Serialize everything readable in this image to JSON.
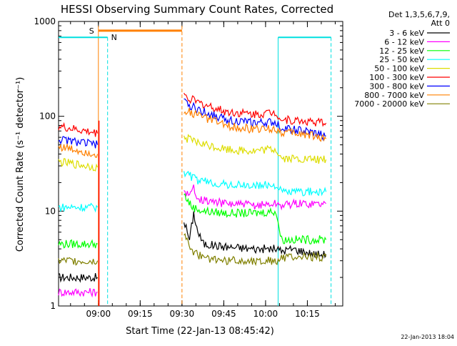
{
  "chart_data": {
    "type": "line",
    "title": "HESSI Observing Summary Count Rates, Corrected",
    "xlabel": "Start Time (22-Jan-13 08:45:42)",
    "ylabel": "Corrected Count Rate (s⁻¹ detector⁻¹)",
    "yscale": "log",
    "ylim": [
      1,
      1000
    ],
    "xlim_minutes": [
      0,
      102
    ],
    "x_tick_labels": [
      {
        "label": "09:00",
        "t": 14.3
      },
      {
        "label": "09:15",
        "t": 29.3
      },
      {
        "label": "09:30",
        "t": 44.3
      },
      {
        "label": "09:45",
        "t": 59.3
      },
      {
        "label": "10:00",
        "t": 74.3
      },
      {
        "label": "10:15",
        "t": 89.3
      }
    ],
    "y_tick_labels": [
      {
        "label": "1",
        "v": 1
      },
      {
        "label": "10",
        "v": 10
      },
      {
        "label": "100",
        "v": 100
      },
      {
        "label": "1000",
        "v": 1000
      }
    ],
    "legend_header_line1": "Det 1,3,5,6,7,9,",
    "legend_header_line2": "Att 0",
    "legend_placement": "right",
    "timestamp": "22-Jan-2013 18:04",
    "markers": {
      "saa_label": "S",
      "night_label": "N",
      "saa_color": "#ff8000",
      "night_color": "#00e0e0"
    },
    "saa_intervals": [
      [
        14.3,
        44.3
      ]
    ],
    "night_intervals": [
      [
        0,
        17.6
      ],
      [
        78.8,
        97.8
      ]
    ],
    "data_gap": [
      14.5,
      44.6
    ],
    "series": [
      {
        "name": "3 - 6 keV",
        "color": "#000000",
        "before": [
          [
            0,
            2
          ],
          [
            14,
            2
          ]
        ],
        "after": [
          [
            45,
            8
          ],
          [
            47,
            5
          ],
          [
            48.5,
            9.5
          ],
          [
            50,
            6
          ],
          [
            52,
            4.5
          ],
          [
            60,
            4.2
          ],
          [
            70,
            4.0
          ],
          [
            78,
            4.0
          ],
          [
            80,
            3.8
          ],
          [
            84,
            4.0
          ],
          [
            92,
            3.5
          ],
          [
            96,
            3.5
          ]
        ]
      },
      {
        "name": "6 - 12 keV",
        "color": "#ff00ff",
        "before": [
          [
            0,
            1.4
          ],
          [
            14,
            1.4
          ]
        ],
        "after": [
          [
            45,
            17
          ],
          [
            47,
            14
          ],
          [
            48.5,
            18
          ],
          [
            50,
            14
          ],
          [
            52,
            13
          ],
          [
            60,
            12
          ],
          [
            70,
            11.5
          ],
          [
            78,
            12
          ],
          [
            80,
            11.5
          ],
          [
            84,
            12
          ],
          [
            96,
            12
          ]
        ]
      },
      {
        "name": "12 - 25 keV",
        "color": "#00ff00",
        "before": [
          [
            0,
            4.5
          ],
          [
            14,
            4.5
          ]
        ],
        "after": [
          [
            45,
            15
          ],
          [
            48,
            11
          ],
          [
            52,
            10
          ],
          [
            60,
            9.5
          ],
          [
            70,
            9.5
          ],
          [
            78,
            10
          ],
          [
            80,
            5
          ],
          [
            86,
            5
          ],
          [
            96,
            5
          ]
        ]
      },
      {
        "name": "25 - 50 keV",
        "color": "#00ffff",
        "before": [
          [
            0,
            11
          ],
          [
            14,
            11
          ]
        ],
        "after": [
          [
            45,
            26
          ],
          [
            50,
            21
          ],
          [
            60,
            19
          ],
          [
            70,
            18.5
          ],
          [
            78,
            19
          ],
          [
            80,
            16
          ],
          [
            90,
            16
          ],
          [
            96,
            16
          ]
        ]
      },
      {
        "name": "50 - 100 keV",
        "color": "#dddd00",
        "before": [
          [
            0,
            33
          ],
          [
            14,
            29
          ]
        ],
        "after": [
          [
            45,
            60
          ],
          [
            50,
            52
          ],
          [
            60,
            45
          ],
          [
            70,
            43
          ],
          [
            78,
            45
          ],
          [
            80,
            36
          ],
          [
            90,
            35
          ],
          [
            96,
            35
          ]
        ]
      },
      {
        "name": "100 - 300 keV",
        "color": "#ff0000",
        "before": [
          [
            0,
            78
          ],
          [
            14,
            66
          ]
        ],
        "after": [
          [
            45,
            165
          ],
          [
            50,
            140
          ],
          [
            60,
            112
          ],
          [
            70,
            105
          ],
          [
            78,
            110
          ],
          [
            80,
            92
          ],
          [
            90,
            88
          ],
          [
            96,
            85
          ]
        ]
      },
      {
        "name": "300 - 800 keV",
        "color": "#0000ff",
        "before": [
          [
            0,
            57
          ],
          [
            14,
            50
          ]
        ],
        "after": [
          [
            45,
            140
          ],
          [
            50,
            118
          ],
          [
            60,
            92
          ],
          [
            70,
            85
          ],
          [
            78,
            86
          ],
          [
            80,
            76
          ],
          [
            90,
            68
          ],
          [
            96,
            62
          ]
        ]
      },
      {
        "name": "800 - 7000 keV",
        "color": "#ff8000",
        "before": [
          [
            0,
            48
          ],
          [
            14,
            40
          ]
        ],
        "after": [
          [
            45,
            118
          ],
          [
            50,
            102
          ],
          [
            60,
            80
          ],
          [
            70,
            73
          ],
          [
            78,
            74
          ],
          [
            80,
            68
          ],
          [
            90,
            64
          ],
          [
            96,
            58
          ]
        ]
      },
      {
        "name": "7000 - 20000 keV",
        "color": "#808000",
        "before": [
          [
            0,
            3.0
          ],
          [
            14,
            3.0
          ]
        ],
        "after": [
          [
            45,
            6
          ],
          [
            48,
            3.8
          ],
          [
            52,
            3.2
          ],
          [
            60,
            3.0
          ],
          [
            70,
            3.0
          ],
          [
            78,
            3.0
          ],
          [
            80,
            3.2
          ],
          [
            90,
            3.3
          ],
          [
            96,
            3.3
          ]
        ]
      }
    ]
  }
}
